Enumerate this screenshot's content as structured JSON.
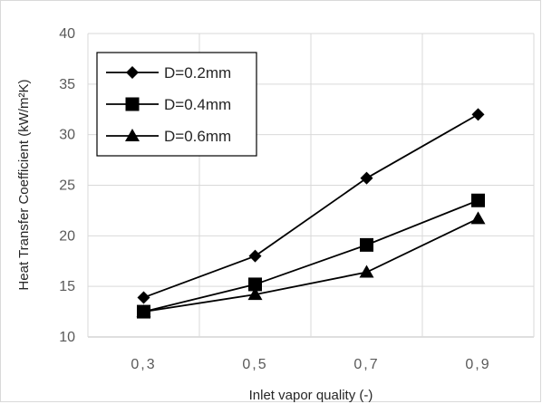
{
  "chart_data": {
    "type": "line",
    "categories": [
      "0,3",
      "0,5",
      "0,7",
      "0,9"
    ],
    "series": [
      {
        "name": "D=0.2mm",
        "marker": "diamond",
        "values": [
          13.9,
          18.0,
          25.7,
          32.0
        ]
      },
      {
        "name": "D=0.4mm",
        "marker": "square",
        "values": [
          12.5,
          15.2,
          19.1,
          23.5
        ]
      },
      {
        "name": "D=0.6mm",
        "marker": "triangle",
        "values": [
          12.5,
          14.2,
          16.4,
          21.7
        ]
      }
    ],
    "title": "",
    "xlabel": "Inlet vapor quality (-)",
    "ylabel": "Heat Transfer Coefficient (kW/m²K)",
    "ylim": [
      10,
      40
    ],
    "yticks": [
      10,
      15,
      20,
      25,
      30,
      35,
      40
    ],
    "grid": true,
    "legend_position": "top-left",
    "colors": {
      "series": "#000000",
      "grid": "#d9d9d9",
      "axis": "#bfbfbf"
    }
  }
}
